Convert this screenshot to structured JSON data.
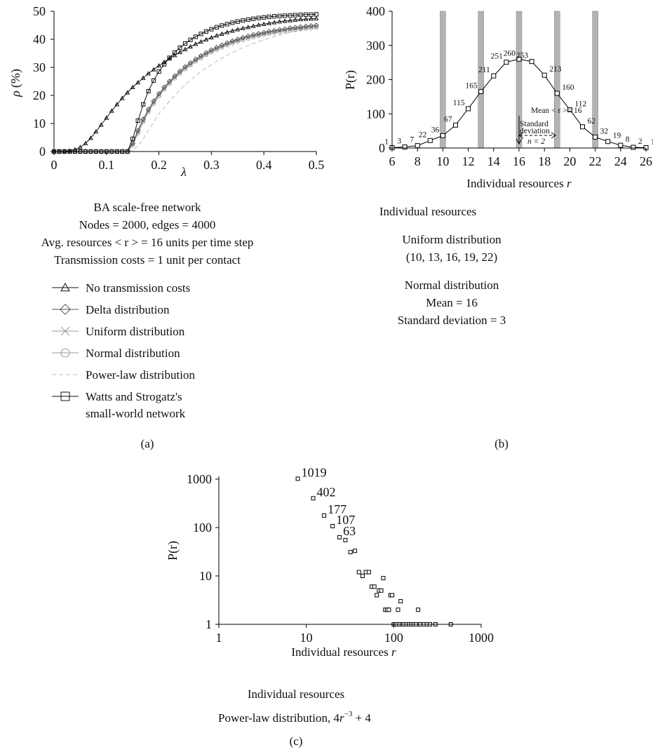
{
  "figure": {
    "panel_labels": [
      "(a)",
      "(b)",
      "(c)"
    ],
    "a": {
      "ylabel_symbol": "ρ",
      "ylabel_unit": "(%)",
      "xlabel": "λ",
      "caption": [
        "BA scale-free network",
        "Nodes = 2000, edges = 4000",
        "Avg. resources < r > = 16 units per time step",
        "Transmission costs = 1 unit per contact"
      ],
      "legend": [
        {
          "label": "No transmission costs",
          "marker": "triangle",
          "color": "#111111"
        },
        {
          "label": "Delta distribution",
          "marker": "diamond",
          "color": "#555555"
        },
        {
          "label": "Uniform distribution",
          "marker": "cross",
          "color": "#999999"
        },
        {
          "label": "Normal distribution",
          "marker": "circle",
          "color": "#999999"
        },
        {
          "label": "Power-law distribution",
          "marker": "dashed",
          "color": "#bbbbbb"
        },
        {
          "label": "Watts and Strogatz's",
          "label2": "small-world network",
          "marker": "square",
          "color": "#111111"
        }
      ]
    },
    "b": {
      "ylabel": "P(r)",
      "xlabel_text": "Individual resources",
      "xlabel_var": "r",
      "annotations": {
        "mean_line": "Mean < r >= 16",
        "std_line1": "Standard",
        "std_line2": "deviation",
        "std_n": "n = 2"
      },
      "caption": [
        "Individual resources",
        "Uniform distribution",
        "(10, 13, 16, 19, 22)",
        "Normal distribution",
        "Mean = 16",
        "Standard deviation = 3"
      ]
    },
    "c": {
      "ylabel": "P(r)",
      "xlabel_text": "Individual resources",
      "xlabel_var": "r",
      "caption1": "Individual resources",
      "caption2_prefix": "Power-law distribution, 4",
      "caption2_var": "r",
      "caption2_exp": "−3",
      "caption2_suffix": " + 4"
    }
  },
  "chart_data": [
    {
      "type": "line",
      "panel": "a",
      "xlabel": "λ",
      "ylabel": "ρ (%)",
      "xlim": [
        0,
        0.5
      ],
      "ylim": [
        0,
        50
      ],
      "xticks": [
        0,
        0.1,
        0.2,
        0.3,
        0.4,
        0.5
      ],
      "yticks": [
        0,
        10,
        20,
        30,
        40,
        50
      ],
      "series": [
        {
          "name": "No transmission costs",
          "color": "#111111",
          "marker": "triangle",
          "x": [
            0,
            0.01,
            0.02,
            0.03,
            0.04,
            0.05,
            0.06,
            0.07,
            0.08,
            0.09,
            0.1,
            0.11,
            0.12,
            0.13,
            0.14,
            0.15,
            0.16,
            0.17,
            0.18,
            0.19,
            0.2,
            0.21,
            0.22,
            0.23,
            0.24,
            0.25,
            0.26,
            0.27,
            0.28,
            0.29,
            0.3,
            0.31,
            0.32,
            0.33,
            0.34,
            0.35,
            0.36,
            0.37,
            0.38,
            0.39,
            0.4,
            0.41,
            0.42,
            0.43,
            0.44,
            0.45,
            0.46,
            0.47,
            0.48,
            0.49,
            0.5
          ],
          "y": [
            0,
            0,
            0.1,
            0.3,
            0.7,
            1.5,
            2.9,
            4.8,
            7.1,
            9.5,
            12.0,
            14.5,
            16.8,
            19.0,
            21.0,
            22.9,
            24.6,
            26.2,
            27.8,
            29.2,
            30.6,
            31.9,
            33.1,
            34.3,
            35.4,
            36.4,
            37.4,
            38.3,
            39.1,
            39.9,
            40.6,
            41.3,
            41.9,
            42.5,
            43.0,
            43.5,
            43.9,
            44.3,
            44.7,
            45.1,
            45.4,
            45.7,
            46.0,
            46.3,
            46.5,
            46.7,
            46.9,
            47.1,
            47.2,
            47.3,
            47.4
          ]
        },
        {
          "name": "Delta distribution",
          "color": "#555555",
          "marker": "diamond",
          "x": [
            0,
            0.01,
            0.02,
            0.03,
            0.04,
            0.05,
            0.06,
            0.07,
            0.08,
            0.09,
            0.1,
            0.11,
            0.12,
            0.13,
            0.14,
            0.15,
            0.16,
            0.17,
            0.18,
            0.19,
            0.2,
            0.21,
            0.22,
            0.23,
            0.24,
            0.25,
            0.26,
            0.27,
            0.28,
            0.29,
            0.3,
            0.31,
            0.32,
            0.33,
            0.34,
            0.35,
            0.36,
            0.37,
            0.38,
            0.39,
            0.4,
            0.41,
            0.42,
            0.43,
            0.44,
            0.45,
            0.46,
            0.47,
            0.48,
            0.49,
            0.5
          ],
          "y": [
            0,
            0,
            0,
            0,
            0,
            0,
            0,
            0,
            0,
            0,
            0,
            0,
            0,
            0,
            0,
            3.0,
            7.5,
            11.5,
            15.0,
            18.0,
            20.6,
            22.9,
            25.0,
            26.9,
            28.6,
            30.2,
            31.6,
            32.9,
            34.1,
            35.2,
            36.2,
            37.1,
            37.9,
            38.7,
            39.4,
            40.0,
            40.6,
            41.1,
            41.6,
            42.0,
            42.4,
            42.8,
            43.1,
            43.4,
            43.7,
            44.0,
            44.2,
            44.4,
            44.6,
            44.8,
            45.0
          ]
        },
        {
          "name": "Uniform distribution",
          "color": "#999999",
          "marker": "cross",
          "x": [
            0,
            0.01,
            0.02,
            0.03,
            0.04,
            0.05,
            0.06,
            0.07,
            0.08,
            0.09,
            0.1,
            0.11,
            0.12,
            0.13,
            0.14,
            0.15,
            0.16,
            0.17,
            0.18,
            0.19,
            0.2,
            0.21,
            0.22,
            0.23,
            0.24,
            0.25,
            0.26,
            0.27,
            0.28,
            0.29,
            0.3,
            0.31,
            0.32,
            0.33,
            0.34,
            0.35,
            0.36,
            0.37,
            0.38,
            0.39,
            0.4,
            0.41,
            0.42,
            0.43,
            0.44,
            0.45,
            0.46,
            0.47,
            0.48,
            0.49,
            0.5
          ],
          "y": [
            0,
            0,
            0,
            0,
            0,
            0,
            0,
            0,
            0,
            0,
            0,
            0,
            0,
            0,
            0,
            2.6,
            7.0,
            11.0,
            14.5,
            17.5,
            20.2,
            22.5,
            24.6,
            26.5,
            28.2,
            29.8,
            31.2,
            32.5,
            33.7,
            34.8,
            35.8,
            36.7,
            37.5,
            38.3,
            39.0,
            39.6,
            40.2,
            40.7,
            41.2,
            41.6,
            42.0,
            42.4,
            42.7,
            43.0,
            43.3,
            43.6,
            43.8,
            44.0,
            44.2,
            44.4,
            44.6
          ]
        },
        {
          "name": "Normal distribution",
          "color": "#999999",
          "marker": "circle",
          "x": [
            0,
            0.01,
            0.02,
            0.03,
            0.04,
            0.05,
            0.06,
            0.07,
            0.08,
            0.09,
            0.1,
            0.11,
            0.12,
            0.13,
            0.14,
            0.15,
            0.16,
            0.17,
            0.18,
            0.19,
            0.2,
            0.21,
            0.22,
            0.23,
            0.24,
            0.25,
            0.26,
            0.27,
            0.28,
            0.29,
            0.3,
            0.31,
            0.32,
            0.33,
            0.34,
            0.35,
            0.36,
            0.37,
            0.38,
            0.39,
            0.4,
            0.41,
            0.42,
            0.43,
            0.44,
            0.45,
            0.46,
            0.47,
            0.48,
            0.49,
            0.5
          ],
          "y": [
            0,
            0,
            0,
            0,
            0,
            0,
            0,
            0,
            0,
            0,
            0,
            0,
            0,
            0,
            0,
            2.3,
            6.6,
            10.6,
            14.1,
            17.1,
            19.8,
            22.1,
            24.2,
            26.1,
            27.8,
            29.4,
            30.8,
            32.1,
            33.3,
            34.4,
            35.4,
            36.3,
            37.1,
            37.9,
            38.6,
            39.2,
            39.8,
            40.3,
            40.8,
            41.2,
            41.6,
            42.0,
            42.3,
            42.6,
            42.9,
            43.2,
            43.4,
            43.6,
            43.8,
            44.0,
            44.2
          ]
        },
        {
          "name": "Power-law distribution",
          "color": "#bbbbbb",
          "marker": "dashed",
          "x": [
            0.14,
            0.15,
            0.16,
            0.17,
            0.18,
            0.19,
            0.2,
            0.22,
            0.24,
            0.26,
            0.28,
            0.3,
            0.32,
            0.34,
            0.36,
            0.38,
            0.4,
            0.42,
            0.44,
            0.46,
            0.48,
            0.5
          ],
          "y": [
            0,
            0.5,
            2.0,
            4.5,
            7.5,
            10.5,
            13.5,
            18.0,
            22.0,
            25.5,
            28.5,
            31.0,
            33.3,
            35.3,
            37.0,
            38.5,
            39.8,
            41.0,
            42.0,
            42.9,
            43.7,
            44.4
          ]
        },
        {
          "name": "Watts and Strogatz's small-world network",
          "color": "#111111",
          "marker": "square",
          "x": [
            0,
            0.01,
            0.02,
            0.03,
            0.04,
            0.05,
            0.06,
            0.07,
            0.08,
            0.09,
            0.1,
            0.11,
            0.12,
            0.13,
            0.14,
            0.15,
            0.16,
            0.17,
            0.18,
            0.19,
            0.2,
            0.21,
            0.22,
            0.23,
            0.24,
            0.25,
            0.26,
            0.27,
            0.28,
            0.29,
            0.3,
            0.31,
            0.32,
            0.33,
            0.34,
            0.35,
            0.36,
            0.37,
            0.38,
            0.39,
            0.4,
            0.41,
            0.42,
            0.43,
            0.44,
            0.45,
            0.46,
            0.47,
            0.48,
            0.49,
            0.5
          ],
          "y": [
            0,
            0,
            0,
            0,
            0,
            0,
            0,
            0,
            0,
            0,
            0,
            0,
            0,
            0,
            0,
            4.5,
            11.0,
            16.8,
            21.5,
            25.3,
            28.5,
            31.1,
            33.4,
            35.3,
            37.0,
            38.5,
            39.8,
            40.9,
            41.9,
            42.8,
            43.6,
            44.3,
            44.9,
            45.4,
            45.9,
            46.3,
            46.7,
            47.0,
            47.3,
            47.6,
            47.8,
            48.0,
            48.2,
            48.3,
            48.4,
            48.5,
            48.6,
            48.7,
            48.8,
            48.8,
            48.9
          ]
        }
      ]
    },
    {
      "type": "line",
      "panel": "b",
      "xlabel": "Individual resources r",
      "ylabel": "P(r)",
      "xlim": [
        6,
        26
      ],
      "ylim": [
        0,
        400
      ],
      "xticks": [
        6,
        8,
        10,
        12,
        14,
        16,
        18,
        20,
        22,
        24,
        26
      ],
      "yticks": [
        0,
        100,
        200,
        300,
        400
      ],
      "x": [
        6,
        7,
        8,
        9,
        10,
        11,
        12,
        13,
        14,
        15,
        16,
        17,
        18,
        19,
        20,
        21,
        22,
        23,
        24,
        25,
        26
      ],
      "values": [
        1,
        3,
        7,
        22,
        36,
        67,
        115,
        165,
        211,
        251,
        260,
        253,
        213,
        160,
        112,
        62,
        32,
        19,
        8,
        2,
        1
      ],
      "data_labels": [
        "1",
        "3",
        "7",
        "22",
        "36",
        "67",
        "115",
        "165",
        "211",
        "251",
        "260",
        "253",
        "213",
        "160",
        "112",
        "62",
        "32",
        "19",
        "8",
        "2",
        "1"
      ],
      "bars": {
        "x": [
          10,
          13,
          16,
          19,
          22
        ],
        "color": "#b3b3b3"
      }
    },
    {
      "type": "scatter",
      "panel": "c",
      "xlabel": "Individual resources r",
      "ylabel": "P(r)",
      "xscale": "log",
      "yscale": "log",
      "xlim": [
        1,
        1000
      ],
      "ylim": [
        1,
        1000
      ],
      "xticks": [
        1,
        10,
        100,
        1000
      ],
      "yticks": [
        1,
        10,
        100,
        1000
      ],
      "x": [
        8,
        12,
        16,
        20,
        24,
        28,
        32,
        36,
        40,
        44,
        48,
        52,
        56,
        60,
        64,
        68,
        72,
        76,
        80,
        84,
        88,
        92,
        96,
        100,
        104,
        108,
        112,
        116,
        120,
        125,
        130,
        140,
        150,
        160,
        170,
        180,
        190,
        200,
        220,
        240,
        260,
        300,
        450
      ],
      "values": [
        1019,
        402,
        177,
        107,
        63,
        55,
        31,
        33,
        12,
        10,
        12,
        12,
        6,
        6,
        4,
        5,
        5,
        9,
        2,
        2,
        2,
        4,
        4,
        1,
        1,
        1,
        2,
        1,
        3,
        1,
        1,
        1,
        1,
        1,
        1,
        1,
        2,
        1,
        1,
        1,
        1,
        1,
        1
      ],
      "data_labels": [
        {
          "x": 8,
          "label": "1019"
        },
        {
          "x": 12,
          "label": "402"
        },
        {
          "x": 16,
          "label": "177"
        },
        {
          "x": 20,
          "label": "107"
        },
        {
          "x": 24,
          "label": "63"
        }
      ]
    }
  ]
}
